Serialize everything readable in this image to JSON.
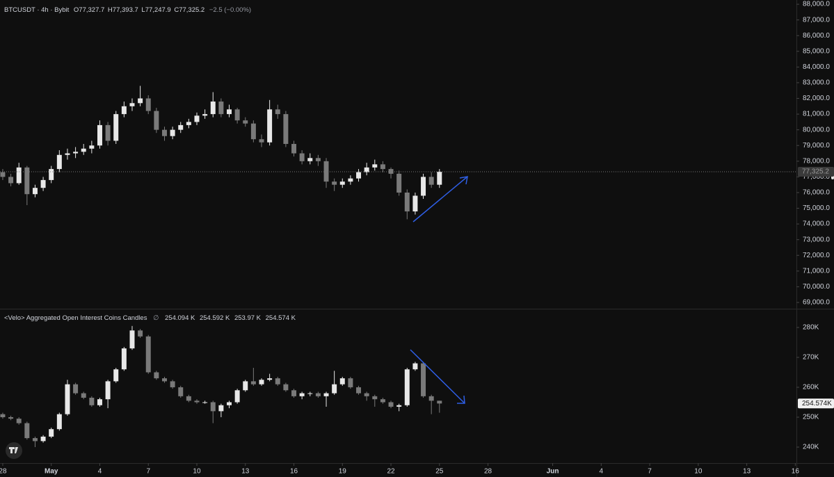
{
  "chart_data": [
    {
      "type": "candlestick",
      "title": "BTCUSDT · 4h · Bybit",
      "ohlc_labels": [
        "O",
        "H",
        "L",
        "C"
      ],
      "ohlc_values": [
        "77,327.7",
        "77,393.7",
        "77,247.9",
        "77,325.2"
      ],
      "change": "−2.5 (−0.00%)",
      "up_color": "#e8e8e8",
      "down_color": "#7a7a7a",
      "x": [
        0,
        0.5,
        1,
        1.5,
        2,
        2.5,
        3,
        3.5,
        4,
        4.5,
        5,
        5.5,
        6,
        6.5,
        7,
        7.5,
        8,
        8.5,
        9,
        9.5,
        10,
        10.5,
        11,
        11.5,
        12,
        12.5,
        13,
        13.5,
        14,
        14.5,
        15,
        15.5,
        16,
        16.5,
        17,
        17.5,
        18,
        18.5,
        19,
        19.5,
        20,
        20.5,
        21,
        21.5,
        22,
        22.5,
        23,
        23.5,
        24,
        24.5,
        25,
        25.5,
        26,
        26.5,
        27
      ],
      "candles": [
        [
          77300,
          77500,
          76800,
          77000
        ],
        [
          77000,
          77200,
          76400,
          76600
        ],
        [
          76600,
          77900,
          76500,
          77600
        ],
        [
          77600,
          77700,
          75200,
          75900
        ],
        [
          75900,
          76500,
          75700,
          76300
        ],
        [
          76300,
          77000,
          76100,
          76800
        ],
        [
          76800,
          77700,
          76600,
          77500
        ],
        [
          77500,
          78700,
          77300,
          78400
        ],
        [
          78400,
          78800,
          78100,
          78500
        ],
        [
          78500,
          78900,
          78200,
          78600
        ],
        [
          78600,
          79100,
          78400,
          78800
        ],
        [
          78800,
          79300,
          78500,
          79000
        ],
        [
          79000,
          80600,
          78800,
          80300
        ],
        [
          80300,
          80500,
          79000,
          79300
        ],
        [
          79300,
          81200,
          79100,
          81000
        ],
        [
          81000,
          81800,
          80800,
          81500
        ],
        [
          81500,
          82000,
          81200,
          81700
        ],
        [
          81700,
          82800,
          81500,
          82000
        ],
        [
          82000,
          82200,
          81000,
          81200
        ],
        [
          81200,
          81400,
          79800,
          80000
        ],
        [
          80000,
          80200,
          79300,
          79600
        ],
        [
          79600,
          80200,
          79400,
          80000
        ],
        [
          80000,
          80500,
          79800,
          80300
        ],
        [
          80300,
          80700,
          80100,
          80500
        ],
        [
          80500,
          81100,
          80300,
          80900
        ],
        [
          80900,
          81300,
          80700,
          81000
        ],
        [
          81000,
          82400,
          80800,
          81800
        ],
        [
          81800,
          82000,
          80800,
          81000
        ],
        [
          81000,
          81600,
          80800,
          81300
        ],
        [
          81300,
          81400,
          80400,
          80600
        ],
        [
          80600,
          80800,
          80200,
          80400
        ],
        [
          80400,
          80600,
          79200,
          79400
        ],
        [
          79400,
          79700,
          78900,
          79200
        ],
        [
          79200,
          81900,
          79000,
          81300
        ],
        [
          81300,
          81600,
          80700,
          81000
        ],
        [
          81000,
          81200,
          78900,
          79100
        ],
        [
          79100,
          79300,
          78300,
          78500
        ],
        [
          78500,
          78700,
          77800,
          78000
        ],
        [
          78000,
          78500,
          77800,
          78200
        ],
        [
          78200,
          78400,
          77700,
          78000
        ],
        [
          78000,
          78200,
          76300,
          76700
        ],
        [
          76700,
          76900,
          76100,
          76500
        ],
        [
          76500,
          76900,
          76300,
          76700
        ],
        [
          76700,
          77100,
          76500,
          76900
        ],
        [
          76900,
          77500,
          76700,
          77300
        ],
        [
          77300,
          77900,
          77100,
          77600
        ],
        [
          77600,
          78100,
          77400,
          77800
        ],
        [
          77800,
          78000,
          77300,
          77500
        ],
        [
          77500,
          77600,
          76900,
          77200
        ],
        [
          77200,
          77400,
          75800,
          76000
        ],
        [
          76000,
          76200,
          74300,
          74800
        ],
        [
          74800,
          76000,
          74600,
          75800
        ],
        [
          75800,
          77200,
          75600,
          77000
        ],
        [
          77000,
          77300,
          76300,
          76500
        ],
        [
          76500,
          77500,
          76300,
          77325.2
        ]
      ],
      "xlim": [
        -0.17,
        49.07
      ],
      "ylim": [
        68600,
        88270
      ],
      "yticks": [
        {
          "value": 69000,
          "label": "69,000.0"
        },
        {
          "value": 70000,
          "label": "70,000.0"
        },
        {
          "value": 71000,
          "label": "71,000.0"
        },
        {
          "value": 72000,
          "label": "72,000.0"
        },
        {
          "value": 73000,
          "label": "73,000.0"
        },
        {
          "value": 74000,
          "label": "74,000.0"
        },
        {
          "value": 75000,
          "label": "75,000.0"
        },
        {
          "value": 76000,
          "label": "76,000.0"
        },
        {
          "value": 77000,
          "label": "77,000.0"
        },
        {
          "value": 78000,
          "label": "78,000.0"
        },
        {
          "value": 79000,
          "label": "79,000.0"
        },
        {
          "value": 80000,
          "label": "80,000.0"
        },
        {
          "value": 81000,
          "label": "81,000.0"
        },
        {
          "value": 82000,
          "label": "82,000.0"
        },
        {
          "value": 83000,
          "label": "83,000.0"
        },
        {
          "value": 84000,
          "label": "84,000.0"
        },
        {
          "value": 85000,
          "label": "85,000.0"
        },
        {
          "value": 86000,
          "label": "86,000.0"
        },
        {
          "value": 87000,
          "label": "87,000.0"
        },
        {
          "value": 88000,
          "label": "88,000.0"
        }
      ],
      "last": {
        "value": 77325.2,
        "label": "77,325.2"
      }
    },
    {
      "type": "candlestick",
      "title": "<Velo> Aggregated Open Interest Coins Candles",
      "symbol": "∅",
      "ohlc_values": [
        "254.094 K",
        "254.592 K",
        "253.97 K",
        "254.574 K"
      ],
      "up_color": "#e8e8e8",
      "down_color": "#7a7a7a",
      "x": [
        0,
        0.5,
        1,
        1.5,
        2,
        2.5,
        3,
        3.5,
        4,
        4.5,
        5,
        5.5,
        6,
        6.5,
        7,
        7.5,
        8,
        8.5,
        9,
        9.5,
        10,
        10.5,
        11,
        11.5,
        12,
        12.5,
        13,
        13.5,
        14,
        14.5,
        15,
        15.5,
        16,
        16.5,
        17,
        17.5,
        18,
        18.5,
        19,
        19.5,
        20,
        20.5,
        21,
        21.5,
        22,
        22.5,
        23,
        23.5,
        24,
        24.5,
        25,
        25.5,
        26,
        26.5,
        27
      ],
      "candles": [
        [
          251000,
          251500,
          249500,
          250000
        ],
        [
          250000,
          250500,
          249000,
          249500
        ],
        [
          249500,
          250000,
          247500,
          248000
        ],
        [
          248000,
          248500,
          242500,
          243000
        ],
        [
          243000,
          243500,
          240000,
          242000
        ],
        [
          242000,
          244000,
          241500,
          243500
        ],
        [
          243500,
          246500,
          243000,
          246000
        ],
        [
          246000,
          251500,
          245500,
          251000
        ],
        [
          251000,
          262500,
          250500,
          261000
        ],
        [
          261000,
          261500,
          257500,
          258000
        ],
        [
          258000,
          258500,
          256000,
          256500
        ],
        [
          256500,
          257000,
          253500,
          254000
        ],
        [
          254000,
          256500,
          253500,
          256000
        ],
        [
          256000,
          262500,
          253000,
          262000
        ],
        [
          262000,
          266500,
          261500,
          266000
        ],
        [
          266000,
          273500,
          265500,
          273000
        ],
        [
          273000,
          280500,
          272500,
          279000
        ],
        [
          279000,
          279500,
          276500,
          277000
        ],
        [
          277000,
          277500,
          264500,
          265000
        ],
        [
          265000,
          265500,
          262500,
          263000
        ],
        [
          263000,
          263500,
          261500,
          262000
        ],
        [
          262000,
          262500,
          259500,
          260000
        ],
        [
          260000,
          260500,
          256500,
          257000
        ],
        [
          257000,
          257500,
          255000,
          255500
        ],
        [
          255500,
          256000,
          254500,
          255000
        ],
        [
          255000,
          255500,
          254500,
          255000
        ],
        [
          255000,
          255500,
          248000,
          252000
        ],
        [
          252000,
          254500,
          250000,
          254000
        ],
        [
          254000,
          255500,
          253000,
          255000
        ],
        [
          255000,
          259500,
          254500,
          259000
        ],
        [
          259000,
          262500,
          258500,
          262000
        ],
        [
          262000,
          266500,
          260500,
          261000
        ],
        [
          261000,
          263000,
          260500,
          262500
        ],
        [
          262500,
          264500,
          262000,
          263000
        ],
        [
          263000,
          263500,
          260500,
          261000
        ],
        [
          261000,
          261500,
          258500,
          259000
        ],
        [
          259000,
          259500,
          256500,
          257000
        ],
        [
          257000,
          258500,
          256000,
          258000
        ],
        [
          258000,
          258500,
          257000,
          258000
        ],
        [
          258000,
          258500,
          256500,
          257000
        ],
        [
          257000,
          258500,
          253500,
          258000
        ],
        [
          258000,
          265500,
          257500,
          261000
        ],
        [
          261000,
          263500,
          260500,
          263000
        ],
        [
          263000,
          263500,
          259500,
          260000
        ],
        [
          260000,
          260500,
          257500,
          258000
        ],
        [
          258000,
          258500,
          255500,
          257000
        ],
        [
          257000,
          257500,
          253500,
          256000
        ],
        [
          256000,
          256500,
          254500,
          255000
        ],
        [
          255000,
          255500,
          253000,
          253500
        ],
        [
          253500,
          254500,
          252000,
          254000
        ],
        [
          254000,
          266500,
          253500,
          266000
        ],
        [
          266000,
          268500,
          265500,
          268000
        ],
        [
          268000,
          268500,
          256500,
          257000
        ],
        [
          257000,
          257500,
          251000,
          255500
        ],
        [
          255500,
          255500,
          251500,
          254574
        ]
      ],
      "xlim": [
        -0.17,
        49.07
      ],
      "ylim": [
        234650,
        285800
      ],
      "yticks": [
        {
          "value": 240000,
          "label": "240K"
        },
        {
          "value": 250000,
          "label": "250K"
        },
        {
          "value": 260000,
          "label": "260K"
        },
        {
          "value": 270000,
          "label": "270K"
        },
        {
          "value": 280000,
          "label": "280K"
        }
      ],
      "last": {
        "value": 254574,
        "label": "254.574K"
      },
      "xticks": [
        {
          "value": 0,
          "label": "28"
        },
        {
          "value": 3,
          "label": "May"
        },
        {
          "value": 6,
          "label": "4"
        },
        {
          "value": 9,
          "label": "7"
        },
        {
          "value": 12,
          "label": "10"
        },
        {
          "value": 15,
          "label": "13"
        },
        {
          "value": 18,
          "label": "16"
        },
        {
          "value": 21,
          "label": "19"
        },
        {
          "value": 24,
          "label": "22"
        },
        {
          "value": 27,
          "label": "25"
        },
        {
          "value": 30,
          "label": "28"
        },
        {
          "value": 34,
          "label": "Jun"
        },
        {
          "value": 37,
          "label": "4"
        },
        {
          "value": 40,
          "label": "7"
        },
        {
          "value": 43,
          "label": "10"
        },
        {
          "value": 46,
          "label": "13"
        },
        {
          "value": 49,
          "label": "16"
        }
      ]
    }
  ]
}
